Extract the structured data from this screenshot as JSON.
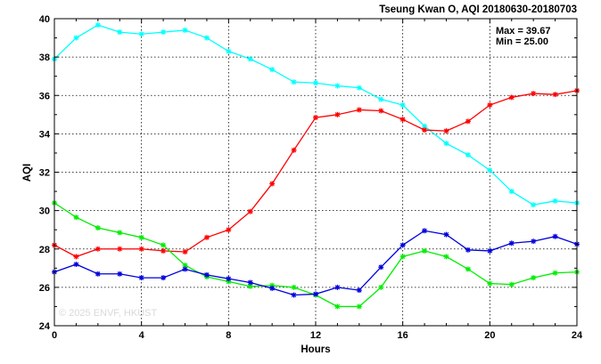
{
  "chart_data": {
    "type": "line",
    "title": "Tseung Kwan O, AQI 20180630-20180703",
    "xlabel": "Hours",
    "ylabel": "AQI",
    "xlim": [
      0,
      24
    ],
    "ylim": [
      24,
      40
    ],
    "x_ticks": [
      0,
      4,
      8,
      12,
      16,
      20,
      24
    ],
    "y_ticks": [
      24,
      26,
      28,
      30,
      32,
      34,
      36,
      38,
      40
    ],
    "grid": true,
    "annotations": {
      "max": "Max = 39.67",
      "min": "Min = 25.00"
    },
    "watermark": "© 2025 ENVF, HKUST",
    "series": [
      {
        "color": "#00ffff",
        "x": [
          0,
          1,
          2,
          3,
          4,
          5,
          6,
          7,
          8,
          9,
          10,
          11,
          12,
          13,
          14,
          15,
          16,
          17,
          18,
          19,
          20,
          21,
          22,
          23,
          24
        ],
        "values": [
          37.9,
          39.0,
          39.67,
          39.3,
          39.2,
          39.3,
          39.4,
          39.0,
          38.3,
          37.9,
          37.35,
          36.7,
          36.65,
          36.5,
          36.4,
          35.8,
          35.5,
          34.4,
          33.5,
          32.9,
          32.1,
          31.0,
          30.3,
          30.5,
          30.4
        ]
      },
      {
        "color": "#ff0000",
        "x": [
          0,
          1,
          2,
          3,
          4,
          5,
          6,
          7,
          8,
          9,
          10,
          11,
          12,
          13,
          14,
          15,
          16,
          17,
          18,
          19,
          20,
          21,
          22,
          23,
          24
        ],
        "values": [
          28.2,
          27.6,
          28.0,
          28.0,
          28.0,
          27.9,
          27.85,
          28.6,
          29.0,
          29.95,
          31.4,
          33.15,
          34.85,
          35.0,
          35.25,
          35.2,
          34.75,
          34.2,
          34.15,
          34.65,
          35.5,
          35.9,
          36.1,
          36.05,
          36.25
        ]
      },
      {
        "color": "#00ee00",
        "x": [
          0,
          1,
          2,
          3,
          4,
          5,
          6,
          7,
          8,
          9,
          10,
          11,
          12,
          13,
          14,
          15,
          16,
          17,
          18,
          19,
          20,
          21,
          22,
          23,
          24
        ],
        "values": [
          30.4,
          29.65,
          29.1,
          28.85,
          28.6,
          28.2,
          27.15,
          26.55,
          26.3,
          26.05,
          26.1,
          26.0,
          25.6,
          25.0,
          25.0,
          26.0,
          27.6,
          27.9,
          27.6,
          26.95,
          26.2,
          26.15,
          26.5,
          26.75,
          26.8
        ]
      },
      {
        "color": "#0000dd",
        "x": [
          0,
          1,
          2,
          3,
          4,
          5,
          6,
          7,
          8,
          9,
          10,
          11,
          12,
          13,
          14,
          15,
          16,
          17,
          18,
          19,
          20,
          21,
          22,
          23,
          24
        ],
        "values": [
          26.8,
          27.2,
          26.7,
          26.7,
          26.5,
          26.5,
          26.95,
          26.65,
          26.45,
          26.25,
          25.95,
          25.6,
          25.65,
          26.0,
          25.85,
          27.05,
          28.2,
          28.95,
          28.75,
          27.95,
          27.9,
          28.3,
          28.4,
          28.65,
          28.25
        ]
      }
    ]
  }
}
